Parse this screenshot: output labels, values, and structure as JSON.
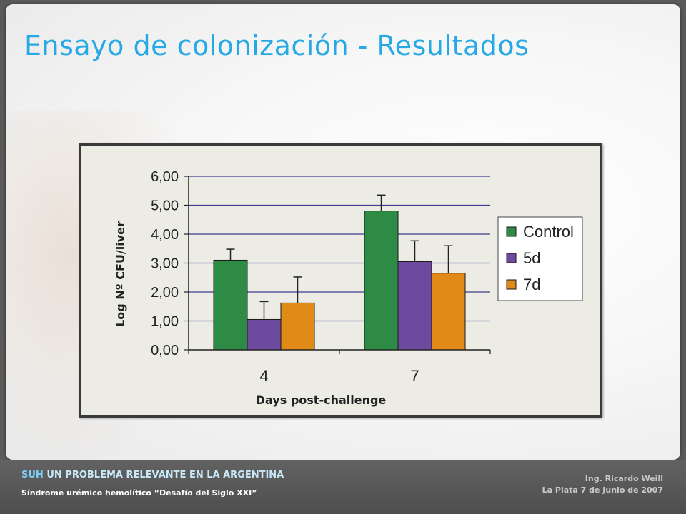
{
  "slide": {
    "title": "Ensayo de colonización - Resultados"
  },
  "footer": {
    "brand": "SUH",
    "headline": "UN PROBLEMA RELEVANTE EN LA ARGENTINA",
    "subtitle": "Síndrome urémico hemolítico “Desafío del Siglo XXI”",
    "author": "Ing. Ricardo Weill",
    "place_date": "La Plata 7 de Junio de 2007"
  },
  "chart_data": {
    "type": "bar",
    "title": "",
    "xlabel": "Days post-challenge",
    "ylabel": "Log Nº CFU/liver",
    "categories": [
      "4",
      "7"
    ],
    "ylim": [
      0,
      6
    ],
    "yticks": [
      "0,00",
      "1,00",
      "2,00",
      "3,00",
      "4,00",
      "5,00",
      "6,00"
    ],
    "grid": true,
    "legend_position": "right",
    "series": [
      {
        "name": "Control",
        "color": "#2e8b45",
        "values": [
          3.1,
          4.8
        ],
        "errors": [
          0.38,
          0.55
        ]
      },
      {
        "name": "5d",
        "color": "#6e4a9e",
        "values": [
          1.05,
          3.05
        ],
        "errors": [
          0.62,
          0.72
        ]
      },
      {
        "name": "7d",
        "color": "#e08a18",
        "values": [
          1.62,
          2.65
        ],
        "errors": [
          0.9,
          0.95
        ]
      }
    ]
  }
}
